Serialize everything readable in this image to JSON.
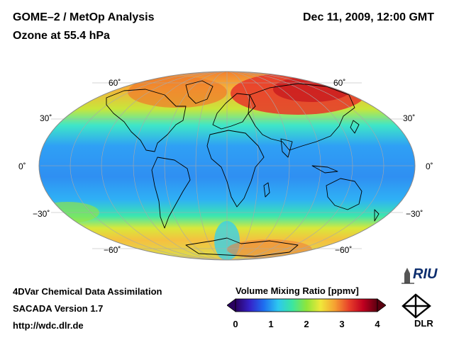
{
  "header": {
    "title_line1": "GOME–2 / MetOp Analysis",
    "title_line2": "Ozone at 55.4 hPa",
    "datetime": "Dec 11, 2009, 12:00 GMT"
  },
  "map": {
    "projection": "Mollweide",
    "parameter": "Ozone volume mixing ratio",
    "latitude_labels": {
      "n60_left": "60˚",
      "n30_left": "30˚",
      "eq_left": "0˚",
      "s30_left": "−30˚",
      "s60_left": "−60˚",
      "n60_right": "60˚",
      "n30_right": "30˚",
      "eq_right": "0˚",
      "s30_right": "−30˚",
      "s60_right": "−60˚"
    },
    "field_colors": {
      "tropics": "#2f93f5",
      "midlat": "#37d6e6",
      "subpolar": "#9ae62d",
      "high": "#f5c93a",
      "max": "#e02820"
    }
  },
  "footer": {
    "line1": "4DVar Chemical Data Assimilation",
    "line2": "SACADA Version 1.7",
    "line3": "http://wdc.dlr.de"
  },
  "colorbar": {
    "title": "Volume Mixing Ratio [ppmv]",
    "ticks": [
      "0",
      "1",
      "2",
      "3",
      "4"
    ],
    "range": [
      0,
      4
    ],
    "colors": [
      "#2a0060",
      "#3522c8",
      "#1e6ff0",
      "#2dc8f0",
      "#3be6a0",
      "#8ee63a",
      "#f0e83a",
      "#f5a032",
      "#e8402a",
      "#c00020",
      "#5a0010"
    ]
  },
  "logos": {
    "riu": "RIU",
    "dlr": "DLR"
  }
}
